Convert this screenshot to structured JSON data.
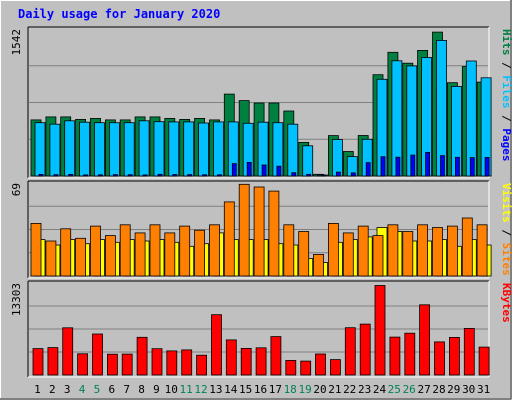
{
  "chart_data": {
    "type": "bar",
    "title": "Daily usage for January 2020",
    "categories": [
      "1",
      "2",
      "3",
      "4",
      "5",
      "6",
      "7",
      "8",
      "9",
      "10",
      "11",
      "12",
      "13",
      "14",
      "15",
      "16",
      "17",
      "18",
      "19",
      "20",
      "21",
      "22",
      "23",
      "24",
      "25",
      "26",
      "27",
      "28",
      "29",
      "30",
      "31"
    ],
    "weekend_days": [
      "4",
      "5",
      "11",
      "12",
      "18",
      "19",
      "25",
      "26"
    ],
    "panels": [
      {
        "id": "hits",
        "max_label": "1542",
        "ymax": 1542,
        "legend": [
          "Hits",
          "Files",
          "Pages"
        ],
        "series": [
          {
            "name": "Hits",
            "color": "#008040",
            "values": [
              588,
              620,
              620,
              594,
              604,
              588,
              588,
              620,
              620,
              604,
              594,
              604,
              588,
              859,
              791,
              766,
              766,
              682,
              352,
              18,
              424,
              257,
              425,
              1063,
              1298,
              1183,
              1318,
              1510,
              979,
              1148,
              985
            ]
          },
          {
            "name": "Files",
            "color": "#00c0ff",
            "values": [
              559,
              543,
              579,
              564,
              559,
              559,
              559,
              579,
              570,
              568,
              568,
              556,
              567,
              568,
              553,
              564,
              559,
              543,
              317,
              8,
              383,
              204,
              385,
              1014,
              1208,
              1155,
              1243,
              1422,
              940,
              1206,
              1030
            ]
          },
          {
            "name": "Pages",
            "color": "#0000ff",
            "values": [
              17,
              14,
              17,
              12,
              13,
              15,
              14,
              12,
              18,
              16,
              15,
              14,
              13,
              130,
              143,
              115,
              103,
              35,
              18,
              5,
              41,
              32,
              141,
              202,
              197,
              219,
              248,
              214,
              196,
              193,
              195
            ]
          }
        ]
      },
      {
        "id": "visits",
        "max_label": "69",
        "ymax": 69,
        "legend": [
          "Visits",
          "Sites"
        ],
        "series": [
          {
            "name": "Visits",
            "color": "#ffff00",
            "values": [
              27,
              23,
              27,
              24,
              27,
              25,
              27,
              26,
              27,
              25,
              22,
              24,
              32,
              27,
              27,
              27,
              24,
              23,
              13,
              10,
              25,
              27,
              29,
              36,
              33,
              26,
              26,
              27,
              22,
              27,
              23
            ]
          },
          {
            "name": "Sites",
            "color": "#ff8000",
            "values": [
              39,
              26,
              35,
              28,
              37,
              30,
              38,
              32,
              38,
              32,
              37,
              34,
              38,
              55,
              68,
              66,
              63,
              38,
              33,
              16,
              39,
              32,
              37,
              30,
              38,
              33,
              38,
              36,
              37,
              43,
              38
            ]
          }
        ]
      },
      {
        "id": "kbytes",
        "max_label": "13303",
        "ymax": 13303,
        "legend": [
          "KBytes"
        ],
        "series": [
          {
            "name": "KBytes",
            "color": "#ff0000",
            "values": [
              3812,
              3967,
              6832,
              3059,
              5926,
              3004,
              3022,
              5449,
              3808,
              3484,
              3633,
              2862,
              8718,
              5081,
              3845,
              3926,
              5549,
              2104,
              2009,
              3032,
              2234,
              6845,
              7367,
              12947,
              5483,
              6049,
              10155,
              4784,
              5440,
              6732,
              4040
            ]
          }
        ]
      }
    ]
  }
}
